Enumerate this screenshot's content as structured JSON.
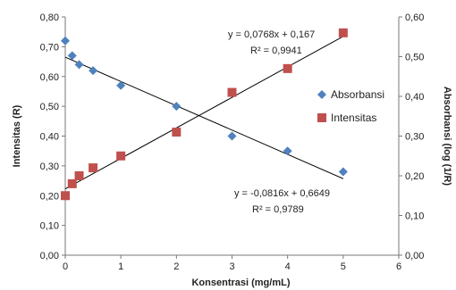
{
  "chart_data": {
    "type": "scatter",
    "xlabel": "Konsentrasi (mg/mL)",
    "ylabel_left": "Intensitas (R)",
    "ylabel_right": "Absorbansi (log (1/R)",
    "xlim": [
      0,
      6
    ],
    "ylim_left": [
      0,
      0.8
    ],
    "ylim_right": [
      0,
      0.6
    ],
    "x_ticks": [
      "0",
      "1",
      "2",
      "3",
      "4",
      "5",
      "6"
    ],
    "y_ticks_left": [
      "0,00",
      "0,10",
      "0,20",
      "0,30",
      "0,40",
      "0,50",
      "0,60",
      "0,70",
      "0,80"
    ],
    "y_ticks_right": [
      "0,00",
      "0,10",
      "0,20",
      "0,30",
      "0,40",
      "0,50",
      "0,60"
    ],
    "grid": false,
    "legend_position": "right",
    "series": [
      {
        "name": "Absorbansi",
        "marker": "diamond",
        "axis": "left",
        "color": "#4f81bd",
        "x": [
          0,
          0.125,
          0.25,
          0.5,
          1,
          2,
          3,
          4,
          5
        ],
        "y": [
          0.72,
          0.67,
          0.64,
          0.62,
          0.57,
          0.5,
          0.4,
          0.35,
          0.28
        ],
        "trendline": {
          "slope": -0.0816,
          "intercept": 0.6649,
          "equation": "y = -0,0816x + 0,6649",
          "r2": "R² = 0,9789"
        }
      },
      {
        "name": "Intensitas",
        "marker": "square",
        "axis": "right",
        "color": "#c0504d",
        "x": [
          0,
          0.125,
          0.25,
          0.5,
          1,
          2,
          3,
          4,
          5
        ],
        "y": [
          0.15,
          0.18,
          0.2,
          0.22,
          0.25,
          0.31,
          0.41,
          0.47,
          0.56
        ],
        "trendline": {
          "slope": 0.0768,
          "intercept": 0.167,
          "equation": "y = 0,0768x + 0,167",
          "r2": "R² = 0,9941"
        }
      }
    ]
  }
}
